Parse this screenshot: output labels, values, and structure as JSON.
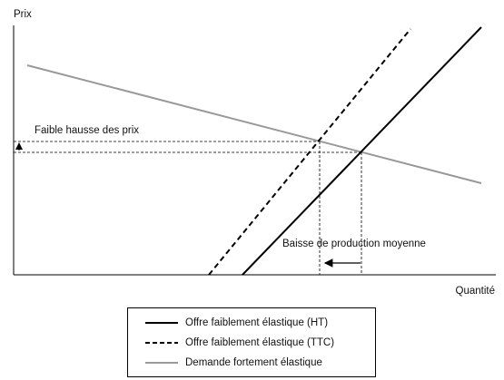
{
  "axes": {
    "y_label": "Prix",
    "x_label": "Quantité"
  },
  "annotations": {
    "price": "Faible hausse des prix",
    "quantity": "Baisse de production moyenne"
  },
  "legend": [
    {
      "label": "Offre faiblement élastique (HT)"
    },
    {
      "label": "Offre faiblement élastique (TTC)"
    },
    {
      "label": "Demande fortement élastique"
    }
  ]
}
